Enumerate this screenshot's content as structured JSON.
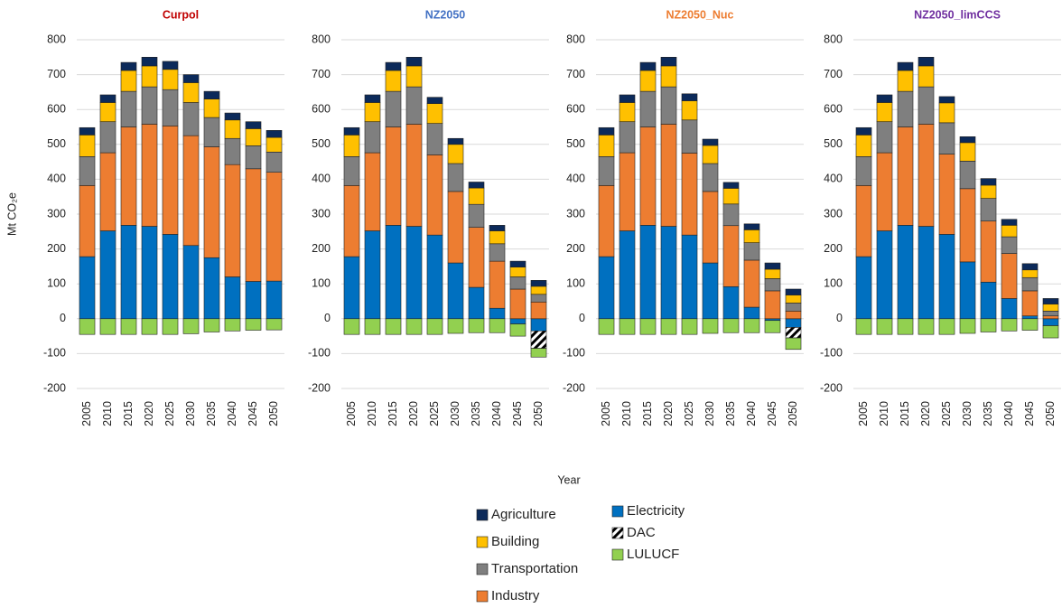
{
  "chart_data": [
    {
      "type": "bar",
      "stacked": true,
      "title": "Curpol",
      "title_color": "#c00000",
      "ylabel": "Mt CO₂e",
      "categories": [
        "2005",
        "2010",
        "2015",
        "2020",
        "2025",
        "2030",
        "2035",
        "2040",
        "2045",
        "2050"
      ],
      "ylim": [
        -200,
        800
      ],
      "yticks": [
        -200,
        -100,
        0,
        100,
        200,
        300,
        400,
        500,
        600,
        700,
        800
      ],
      "grid": true,
      "series": [
        {
          "name": "Electricity",
          "color": "#0070c0",
          "values": [
            178,
            252,
            268,
            265,
            242,
            210,
            175,
            120,
            107,
            108
          ]
        },
        {
          "name": "Industry",
          "color": "#ed7d31",
          "values": [
            204,
            224,
            282,
            293,
            311,
            315,
            318,
            322,
            323,
            312
          ]
        },
        {
          "name": "Transportation",
          "color": "#7f7f7f",
          "values": [
            83,
            89,
            102,
            107,
            104,
            95,
            84,
            75,
            66,
            58
          ]
        },
        {
          "name": "Building",
          "color": "#ffc000",
          "values": [
            62,
            55,
            60,
            60,
            58,
            57,
            53,
            53,
            49,
            42
          ]
        },
        {
          "name": "Agriculture",
          "color": "#0c2a5a",
          "values": [
            21,
            22,
            23,
            25,
            23,
            23,
            22,
            20,
            20,
            20
          ]
        },
        {
          "name": "DAC",
          "color": "#000000",
          "pattern": "hatch",
          "values": [
            0,
            0,
            0,
            0,
            0,
            0,
            0,
            0,
            0,
            0
          ]
        },
        {
          "name": "LULUCF",
          "color": "#92d050",
          "values": [
            -45,
            -45,
            -45,
            -45,
            -45,
            -43,
            -38,
            -35,
            -33,
            -32
          ]
        }
      ]
    },
    {
      "type": "bar",
      "stacked": true,
      "title": "NZ2050",
      "title_color": "#4472c4",
      "xlabel": "Year",
      "categories": [
        "2005",
        "2010",
        "2015",
        "2020",
        "2025",
        "2030",
        "2035",
        "2040",
        "2045",
        "2050"
      ],
      "ylim": [
        -200,
        800
      ],
      "yticks": [
        -200,
        -100,
        0,
        100,
        200,
        300,
        400,
        500,
        600,
        700,
        800
      ],
      "grid": true,
      "series": [
        {
          "name": "Electricity",
          "color": "#0070c0",
          "values": [
            178,
            252,
            268,
            265,
            240,
            160,
            90,
            30,
            -15,
            -35
          ]
        },
        {
          "name": "Industry",
          "color": "#ed7d31",
          "values": [
            204,
            224,
            282,
            293,
            230,
            205,
            172,
            135,
            85,
            48
          ]
        },
        {
          "name": "Transportation",
          "color": "#7f7f7f",
          "values": [
            83,
            89,
            102,
            107,
            90,
            80,
            66,
            50,
            35,
            22
          ]
        },
        {
          "name": "Building",
          "color": "#ffc000",
          "values": [
            62,
            55,
            60,
            60,
            57,
            55,
            47,
            37,
            28,
            23
          ]
        },
        {
          "name": "Agriculture",
          "color": "#0c2a5a",
          "values": [
            21,
            22,
            23,
            25,
            18,
            17,
            17,
            16,
            17,
            17
          ]
        },
        {
          "name": "DAC",
          "color": "#000000",
          "pattern": "hatch",
          "values": [
            0,
            0,
            0,
            0,
            0,
            0,
            0,
            0,
            0,
            -50
          ]
        },
        {
          "name": "LULUCF",
          "color": "#92d050",
          "values": [
            -45,
            -45,
            -45,
            -45,
            -45,
            -42,
            -40,
            -40,
            -35,
            -25
          ]
        }
      ]
    },
    {
      "type": "bar",
      "stacked": true,
      "title": "NZ2050_Nuc",
      "title_color": "#ed7d31",
      "categories": [
        "2005",
        "2010",
        "2015",
        "2020",
        "2025",
        "2030",
        "2035",
        "2040",
        "2045",
        "2050"
      ],
      "ylim": [
        -200,
        800
      ],
      "yticks": [
        -200,
        -100,
        0,
        100,
        200,
        300,
        400,
        500,
        600,
        700,
        800
      ],
      "grid": true,
      "series": [
        {
          "name": "Electricity",
          "color": "#0070c0",
          "values": [
            178,
            252,
            268,
            265,
            240,
            160,
            92,
            33,
            -5,
            -25
          ]
        },
        {
          "name": "Industry",
          "color": "#ed7d31",
          "values": [
            204,
            224,
            282,
            293,
            235,
            205,
            175,
            135,
            80,
            22
          ]
        },
        {
          "name": "Transportation",
          "color": "#7f7f7f",
          "values": [
            83,
            89,
            102,
            107,
            95,
            80,
            62,
            50,
            35,
            23
          ]
        },
        {
          "name": "Building",
          "color": "#ffc000",
          "values": [
            62,
            55,
            60,
            60,
            55,
            52,
            45,
            37,
            27,
            23
          ]
        },
        {
          "name": "Agriculture",
          "color": "#0c2a5a",
          "values": [
            21,
            22,
            23,
            25,
            20,
            18,
            17,
            17,
            18,
            17
          ]
        },
        {
          "name": "DAC",
          "color": "#000000",
          "pattern": "hatch",
          "values": [
            0,
            0,
            0,
            0,
            0,
            0,
            0,
            0,
            0,
            -30
          ]
        },
        {
          "name": "LULUCF",
          "color": "#92d050",
          "values": [
            -45,
            -45,
            -45,
            -45,
            -45,
            -42,
            -40,
            -40,
            -35,
            -33
          ]
        }
      ]
    },
    {
      "type": "bar",
      "stacked": true,
      "title": "NZ2050_limCCS",
      "title_color": "#7030a0",
      "categories": [
        "2005",
        "2010",
        "2015",
        "2020",
        "2025",
        "2030",
        "2035",
        "2040",
        "2045",
        "2050"
      ],
      "ylim": [
        -200,
        800
      ],
      "yticks": [
        -200,
        -100,
        0,
        100,
        200,
        300,
        400,
        500,
        600,
        700,
        800
      ],
      "grid": true,
      "series": [
        {
          "name": "Electricity",
          "color": "#0070c0",
          "values": [
            178,
            252,
            268,
            265,
            242,
            163,
            105,
            58,
            8,
            -20
          ]
        },
        {
          "name": "Industry",
          "color": "#ed7d31",
          "values": [
            204,
            224,
            282,
            293,
            230,
            210,
            175,
            129,
            72,
            8
          ]
        },
        {
          "name": "Transportation",
          "color": "#7f7f7f",
          "values": [
            83,
            89,
            102,
            107,
            90,
            79,
            65,
            48,
            38,
            14
          ]
        },
        {
          "name": "Building",
          "color": "#ffc000",
          "values": [
            62,
            55,
            60,
            60,
            57,
            53,
            38,
            33,
            22,
            20
          ]
        },
        {
          "name": "Agriculture",
          "color": "#0c2a5a",
          "values": [
            21,
            22,
            23,
            25,
            18,
            17,
            19,
            17,
            18,
            16
          ]
        },
        {
          "name": "DAC",
          "color": "#000000",
          "pattern": "hatch",
          "values": [
            0,
            0,
            0,
            0,
            0,
            0,
            0,
            0,
            0,
            0
          ]
        },
        {
          "name": "LULUCF",
          "color": "#92d050",
          "values": [
            -45,
            -45,
            -45,
            -45,
            -45,
            -42,
            -38,
            -35,
            -33,
            -35
          ]
        }
      ]
    }
  ]
}
